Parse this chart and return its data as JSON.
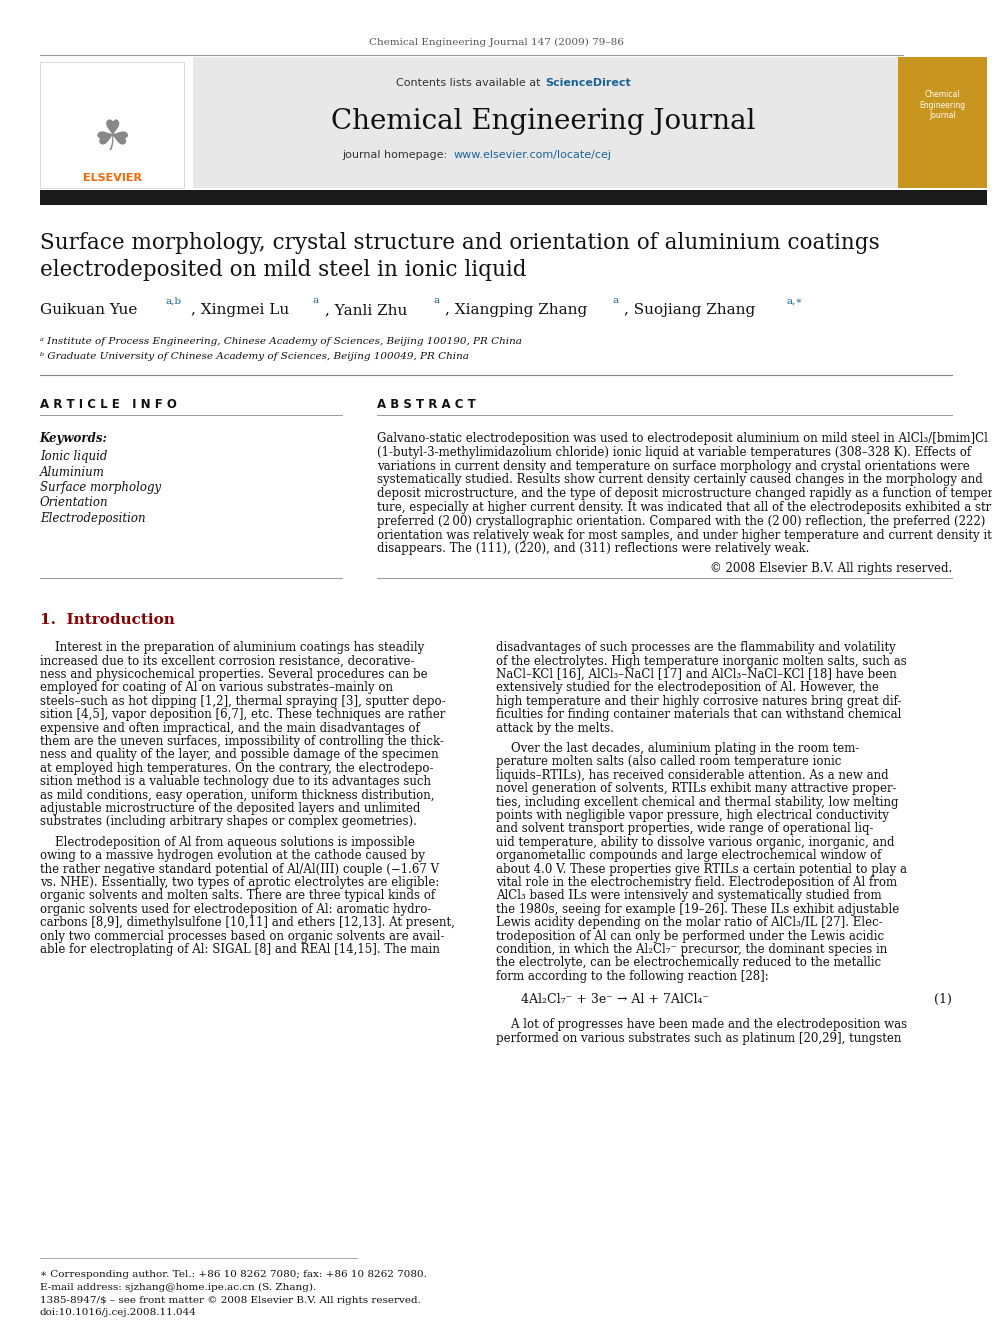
{
  "page_width": 9.92,
  "page_height": 13.23,
  "bg_color": "#ffffff",
  "journal_ref": "Chemical Engineering Journal 147 (2009) 79–86",
  "contents_text": "Contents lists available at ",
  "sciencedirect_text": "ScienceDirect",
  "journal_name": "Chemical Engineering Journal",
  "journal_homepage": "journal homepage: ",
  "homepage_url": "www.elsevier.com/locate/cej",
  "title": "Surface morphology, crystal structure and orientation of aluminium coatings\nelectrodeposited on mild steel in ionic liquid",
  "affil_a": "ᵃ Institute of Process Engineering, Chinese Academy of Sciences, Beijing 100190, PR China",
  "affil_b": "ᵇ Graduate University of Chinese Academy of Sciences, Beijing 100049, PR China",
  "article_info_title": "A R T I C L E   I N F O",
  "keywords_title": "Keywords:",
  "keywords": [
    "Ionic liquid",
    "Aluminium",
    "Surface morphology",
    "Orientation",
    "Electrodeposition"
  ],
  "abstract_title": "A B S T R A C T",
  "equation": "4Al₂Cl₇⁻ + 3e⁻ → Al + 7AlCl₄⁻",
  "equation_number": "(1)",
  "footer_text": "∗ Corresponding author. Tel.: +86 10 8262 7080; fax: +86 10 8262 7080.",
  "footer_email": "E-mail address: sjzhang@home.ipe.ac.cn (S. Zhang).",
  "footer_issn": "1385-8947/$ – see front matter © 2008 Elsevier B.V. All rights reserved.",
  "footer_doi": "doi:10.1016/j.cej.2008.11.044",
  "elsevier_color": "#FF6600",
  "sciencedirect_color": "#1a6396",
  "url_color": "#1a6396",
  "intro_color": "#8B0000",
  "header_bg": "#e8e8e8",
  "dark_bar_color": "#1a1a1a",
  "abstract_lines": [
    "Galvano-static electrodeposition was used to electrodeposit aluminium on mild steel in AlCl₃/[bmim]Cl",
    "(1-butyl-3-methylimidazolium chloride) ionic liquid at variable temperatures (308–328 K). Effects of",
    "variations in current density and temperature on surface morphology and crystal orientations were",
    "systematically studied. Results show current density certainly caused changes in the morphology and",
    "deposit microstructure, and the type of deposit microstructure changed rapidly as a function of tempera-",
    "ture, especially at higher current density. It was indicated that all of the electrodeposits exhibited a strong",
    "preferred (2 00) crystallographic orientation. Compared with the (2 00) reflection, the preferred (222)",
    "orientation was relatively weak for most samples, and under higher temperature and current density it",
    "disappears. The (111), (220), and (311) reflections were relatively weak."
  ],
  "section1_title": "1.  Introduction",
  "intro_col1_lines": [
    "    Interest in the preparation of aluminium coatings has steadily",
    "increased due to its excellent corrosion resistance, decorative-",
    "ness and physicochemical properties. Several procedures can be",
    "employed for coating of Al on various substrates–mainly on",
    "steels–such as hot dipping [1,2], thermal spraying [3], sputter depo-",
    "sition [4,5], vapor deposition [6,7], etc. These techniques are rather",
    "expensive and often impractical, and the main disadvantages of",
    "them are the uneven surfaces, impossibility of controlling the thick-",
    "ness and quality of the layer, and possible damage of the specimen",
    "at employed high temperatures. On the contrary, the electrodepo-",
    "sition method is a valuable technology due to its advantages such",
    "as mild conditions, easy operation, uniform thickness distribution,",
    "adjustable microstructure of the deposited layers and unlimited",
    "substrates (including arbitrary shapes or complex geometries)."
  ],
  "intro_col1b_lines": [
    "    Electrodeposition of Al from aqueous solutions is impossible",
    "owing to a massive hydrogen evolution at the cathode caused by",
    "the rather negative standard potential of Al/Al(III) couple (−1.67 V",
    "vs. NHE). Essentially, two types of aprotic electrolytes are eligible:",
    "organic solvents and molten salts. There are three typical kinds of",
    "organic solvents used for electrodeposition of Al: aromatic hydro-",
    "carbons [8,9], dimethylsulfone [10,11] and ethers [12,13]. At present,",
    "only two commercial processes based on organic solvents are avail-",
    "able for electroplating of Al: SIGAL [8] and REAl [14,15]. The main"
  ],
  "intro_col2_lines": [
    "disadvantages of such processes are the flammability and volatility",
    "of the electrolytes. High temperature inorganic molten salts, such as",
    "NaCl–KCl [16], AlCl₃–NaCl [17] and AlCl₃–NaCl–KCl [18] have been",
    "extensively studied for the electrodeposition of Al. However, the",
    "high temperature and their highly corrosive natures bring great dif-",
    "ficulties for finding container materials that can withstand chemical",
    "attack by the melts."
  ],
  "intro_col2b_lines": [
    "    Over the last decades, aluminium plating in the room tem-",
    "perature molten salts (also called room temperature ionic",
    "liquids–RTILs), has received considerable attention. As a new and",
    "novel generation of solvents, RTILs exhibit many attractive proper-",
    "ties, including excellent chemical and thermal stability, low melting",
    "points with negligible vapor pressure, high electrical conductivity",
    "and solvent transport properties, wide range of operational liq-",
    "uid temperature, ability to dissolve various organic, inorganic, and",
    "organometallic compounds and large electrochemical window of",
    "about 4.0 V. These properties give RTILs a certain potential to play a",
    "vital role in the electrochemistry field. Electrodeposition of Al from",
    "AlCl₃ based ILs were intensively and systematically studied from",
    "the 1980s, seeing for example [19–26]. These ILs exhibit adjustable",
    "Lewis acidity depending on the molar ratio of AlCl₃/IL [27]. Elec-",
    "trodeposition of Al can only be performed under the Lewis acidic",
    "condition, in which the Al₂Cl₇⁻ precursor, the dominant species in",
    "the electrolyte, can be electrochemically reduced to the metallic",
    "form according to the following reaction [28]:"
  ],
  "last_lines": [
    "    A lot of progresses have been made and the electrodeposition was",
    "performed on various substrates such as platinum [20,29], tungsten"
  ]
}
